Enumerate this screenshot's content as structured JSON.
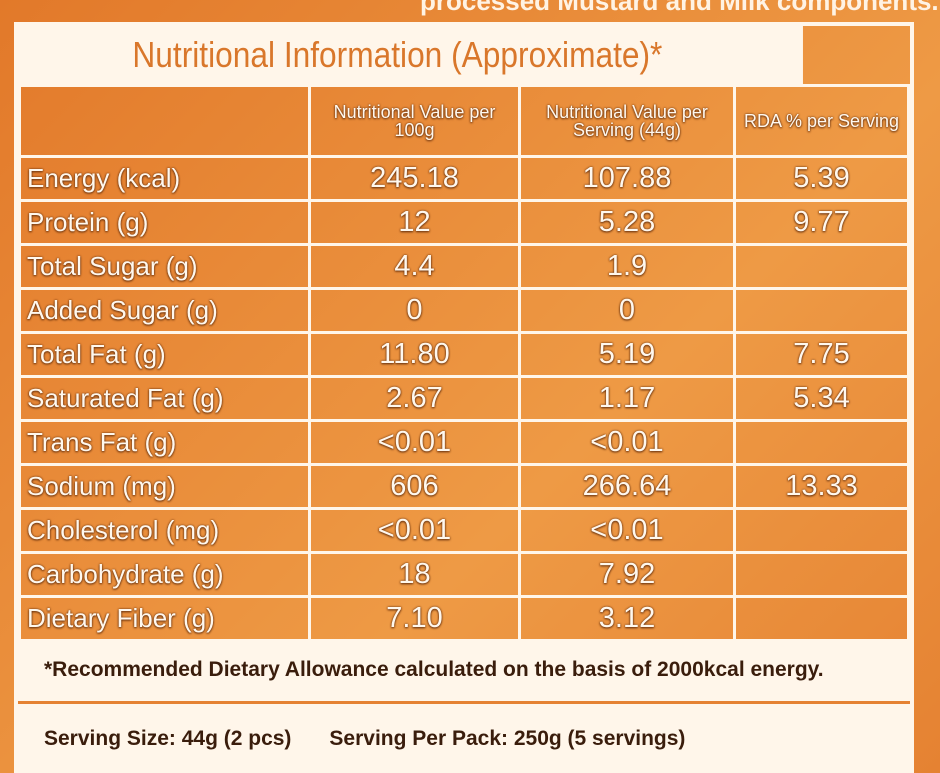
{
  "header": {
    "cut_text": "processed Mustard and Milk components.",
    "title": "Nutritional Information (Approximate)*"
  },
  "table": {
    "columns": [
      "Nutritional Value per 100g",
      "Nutritional Value per Serving (44g)",
      "RDA % per Serving"
    ],
    "rows": [
      {
        "label": "Energy (kcal)",
        "per_100g": "245.18",
        "per_serving": "107.88",
        "rda": "5.39"
      },
      {
        "label": "Protein (g)",
        "per_100g": "12",
        "per_serving": "5.28",
        "rda": "9.77"
      },
      {
        "label": "Total Sugar (g)",
        "per_100g": "4.4",
        "per_serving": "1.9"
      },
      {
        "label": "Added Sugar (g)",
        "per_100g": "0",
        "per_serving": "0"
      },
      {
        "label": "Total Fat (g)",
        "per_100g": "11.80",
        "per_serving": "5.19",
        "rda": "7.75"
      },
      {
        "label": "Saturated Fat (g)",
        "per_100g": "2.67",
        "per_serving": "1.17",
        "rda": "5.34"
      },
      {
        "label": "Trans Fat (g)",
        "per_100g": "<0.01",
        "per_serving": "<0.01"
      },
      {
        "label": "Sodium (mg)",
        "per_100g": "606",
        "per_serving": "266.64",
        "rda": "13.33"
      },
      {
        "label": "Cholesterol (mg)",
        "per_100g": "<0.01",
        "per_serving": "<0.01"
      },
      {
        "label": "Carbohydrate (g)",
        "per_100g": "18",
        "per_serving": "7.92"
      },
      {
        "label": "Dietary Fiber (g)",
        "per_100g": "7.10",
        "per_serving": "3.12"
      }
    ]
  },
  "footer": {
    "note": "*Recommended Dietary Allowance calculated on the basis of 2000kcal energy.",
    "serving_size": "Serving Size: 44g (2 pcs)",
    "serving_per_pack": "Serving Per Pack: 250g (5 servings)"
  }
}
